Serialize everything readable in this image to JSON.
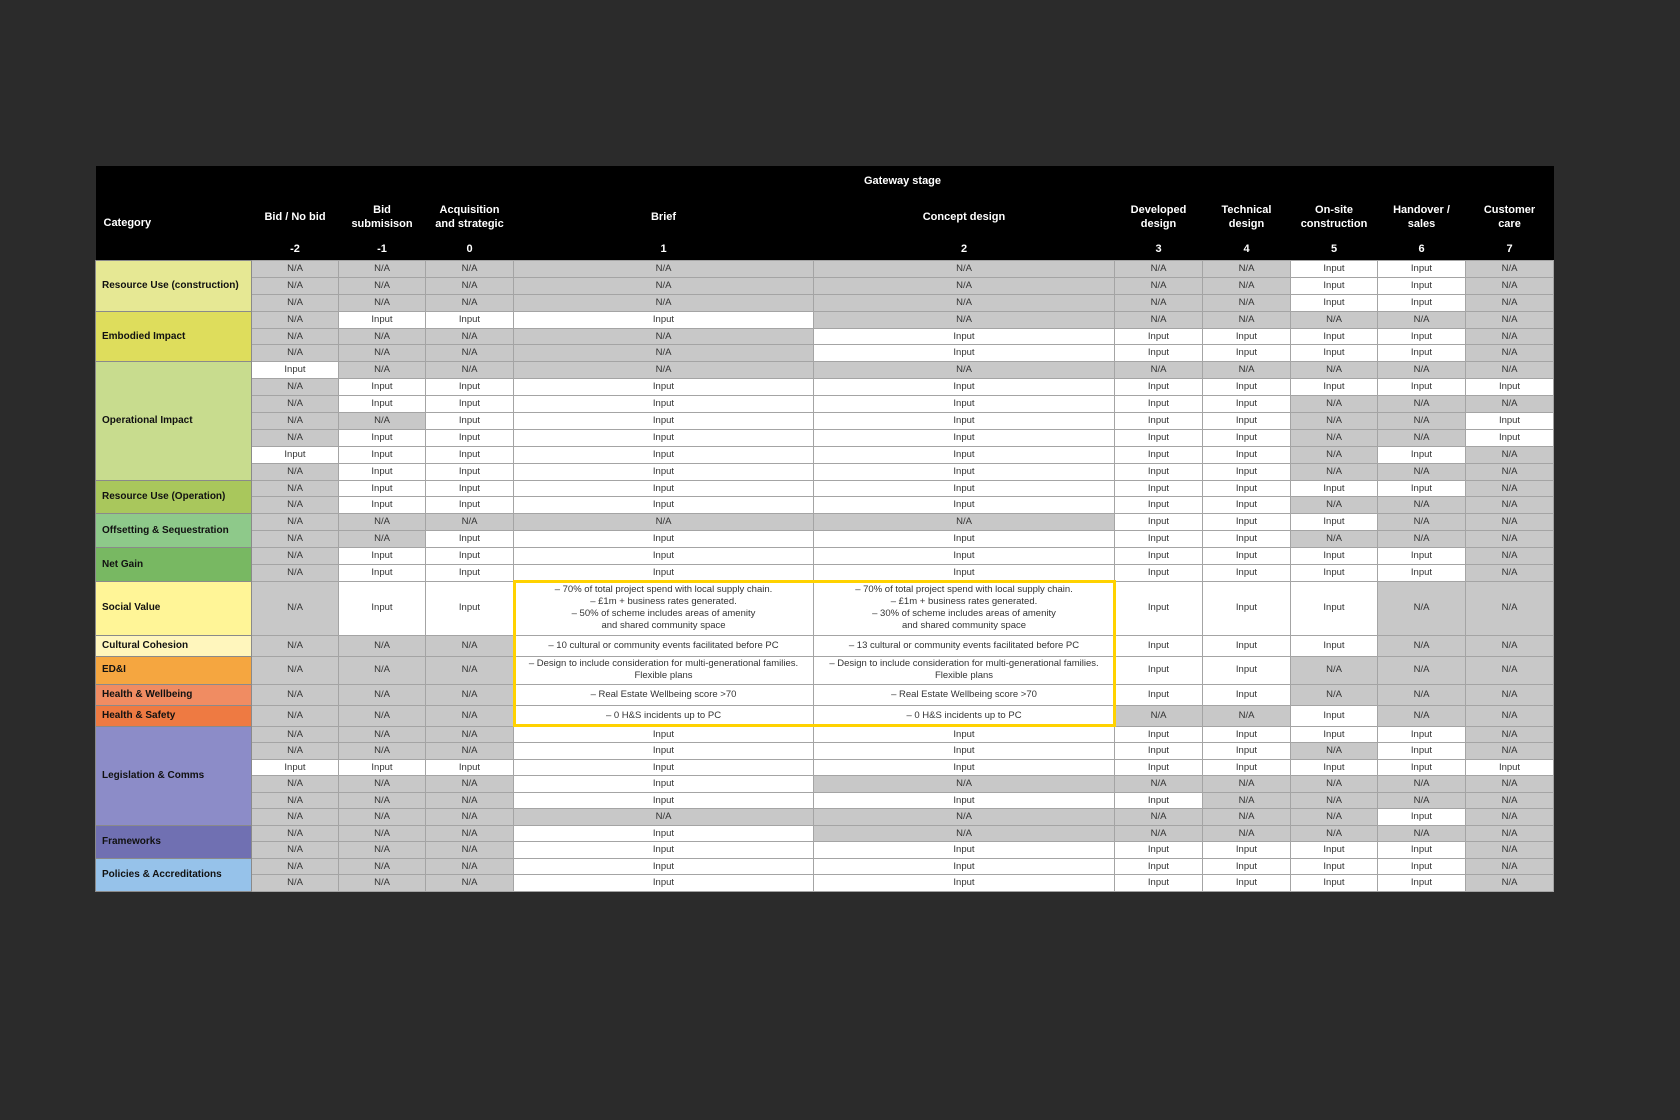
{
  "header": {
    "group_title": "Gateway stage",
    "category_label": "Category",
    "stages": [
      {
        "name": "Bid / No bid",
        "num": "-2"
      },
      {
        "name": "Bid\nsubmisison",
        "num": "-1"
      },
      {
        "name": "Acquisition\nand strategic",
        "num": "0"
      },
      {
        "name": "Brief",
        "num": "1"
      },
      {
        "name": "Concept design",
        "num": "2"
      },
      {
        "name": "Developed\ndesign",
        "num": "3"
      },
      {
        "name": "Technical\ndesign",
        "num": "4"
      },
      {
        "name": "On-site\nconstruction",
        "num": "5"
      },
      {
        "name": "Handover /\nsales",
        "num": "6"
      },
      {
        "name": "Customer\ncare",
        "num": "7"
      }
    ]
  },
  "colors": {
    "na": "#c8c8c8",
    "input": "#ffffff",
    "highlight": "#ffd200"
  },
  "categories": [
    {
      "name": "Resource Use (construction)",
      "color": "#e6e894",
      "rows": [
        [
          "N/A",
          "N/A",
          "N/A",
          "N/A",
          "N/A",
          "N/A",
          "N/A",
          "Input",
          "Input",
          "N/A"
        ],
        [
          "N/A",
          "N/A",
          "N/A",
          "N/A",
          "N/A",
          "N/A",
          "N/A",
          "Input",
          "Input",
          "N/A"
        ],
        [
          "N/A",
          "N/A",
          "N/A",
          "N/A",
          "N/A",
          "N/A",
          "N/A",
          "Input",
          "Input",
          "N/A"
        ]
      ]
    },
    {
      "name": "Embodied Impact",
      "color": "#dedd5c",
      "rows": [
        [
          "N/A",
          "Input",
          "Input",
          "Input",
          "N/A",
          "N/A",
          "N/A",
          "N/A",
          "N/A",
          "N/A"
        ],
        [
          "N/A",
          "N/A",
          "N/A",
          "N/A",
          "Input",
          "Input",
          "Input",
          "Input",
          "Input",
          "N/A"
        ],
        [
          "N/A",
          "N/A",
          "N/A",
          "N/A",
          "Input",
          "Input",
          "Input",
          "Input",
          "Input",
          "N/A"
        ]
      ]
    },
    {
      "name": "Operational Impact",
      "color": "#c8dc8e",
      "rows": [
        [
          "Input",
          "N/A",
          "N/A",
          "N/A",
          "N/A",
          "N/A",
          "N/A",
          "N/A",
          "N/A",
          "N/A"
        ],
        [
          "N/A",
          "Input",
          "Input",
          "Input",
          "Input",
          "Input",
          "Input",
          "Input",
          "Input",
          "Input"
        ],
        [
          "N/A",
          "Input",
          "Input",
          "Input",
          "Input",
          "Input",
          "Input",
          "N/A",
          "N/A",
          "N/A"
        ],
        [
          "N/A",
          "N/A",
          "Input",
          "Input",
          "Input",
          "Input",
          "Input",
          "N/A",
          "N/A",
          "Input"
        ],
        [
          "N/A",
          "Input",
          "Input",
          "Input",
          "Input",
          "Input",
          "Input",
          "N/A",
          "N/A",
          "Input"
        ],
        [
          "Input",
          "Input",
          "Input",
          "Input",
          "Input",
          "Input",
          "Input",
          "N/A",
          "Input",
          "N/A"
        ],
        [
          "N/A",
          "Input",
          "Input",
          "Input",
          "Input",
          "Input",
          "Input",
          "N/A",
          "N/A",
          "N/A"
        ]
      ]
    },
    {
      "name": "Resource Use (Operation)",
      "color": "#a9c75c",
      "rows": [
        [
          "N/A",
          "Input",
          "Input",
          "Input",
          "Input",
          "Input",
          "Input",
          "Input",
          "Input",
          "N/A"
        ],
        [
          "N/A",
          "Input",
          "Input",
          "Input",
          "Input",
          "Input",
          "Input",
          "N/A",
          "N/A",
          "N/A"
        ]
      ]
    },
    {
      "name": "Offsetting & Sequestration",
      "color": "#8ec98a",
      "rows": [
        [
          "N/A",
          "N/A",
          "N/A",
          "N/A",
          "N/A",
          "Input",
          "Input",
          "Input",
          "N/A",
          "N/A"
        ],
        [
          "N/A",
          "N/A",
          "Input",
          "Input",
          "Input",
          "Input",
          "Input",
          "N/A",
          "N/A",
          "N/A"
        ]
      ]
    },
    {
      "name": "Net Gain",
      "color": "#78b862",
      "rows": [
        [
          "N/A",
          "Input",
          "Input",
          "Input",
          "Input",
          "Input",
          "Input",
          "Input",
          "Input",
          "N/A"
        ],
        [
          "N/A",
          "Input",
          "Input",
          "Input",
          "Input",
          "Input",
          "Input",
          "Input",
          "Input",
          "N/A"
        ]
      ]
    },
    {
      "name": "Social Value",
      "color": "#fff597",
      "tall": true,
      "rows": [
        [
          "N/A",
          "Input",
          "Input",
          "– 70% of total project spend with local supply chain.\n– £1m + business rates generated.\n– 50% of scheme includes areas of amenity\nand shared community space",
          "– 70% of total project spend with local supply chain.\n– £1m + business rates generated.\n– 30% of scheme includes areas of amenity\nand shared community space",
          "Input",
          "Input",
          "Input",
          "N/A",
          "N/A"
        ]
      ]
    },
    {
      "name": "Cultural Cohesion",
      "color": "#fff6bd",
      "rows": [
        [
          "N/A",
          "N/A",
          "N/A",
          "– 10 cultural or community events facilitated before PC",
          "– 13 cultural or community events facilitated before PC",
          "Input",
          "Input",
          "Input",
          "N/A",
          "N/A"
        ]
      ]
    },
    {
      "name": "ED&I",
      "color": "#f5a640",
      "rows": [
        [
          "N/A",
          "N/A",
          "N/A",
          "– Design to include consideration for multi-generational families.\nFlexible plans",
          "– Design to include consideration for multi-generational families.\nFlexible plans",
          "Input",
          "Input",
          "N/A",
          "N/A",
          "N/A"
        ]
      ]
    },
    {
      "name": "Health & Wellbeing",
      "color": "#f08c62",
      "rows": [
        [
          "N/A",
          "N/A",
          "N/A",
          "– Real Estate Wellbeing score >70",
          "– Real Estate Wellbeing score >70",
          "Input",
          "Input",
          "N/A",
          "N/A",
          "N/A"
        ]
      ]
    },
    {
      "name": "Health & Safety",
      "color": "#ee7a42",
      "rows": [
        [
          "N/A",
          "N/A",
          "N/A",
          "– 0 H&S incidents up to PC",
          "– 0 H&S incidents up to PC",
          "N/A",
          "N/A",
          "Input",
          "N/A",
          "N/A"
        ]
      ]
    },
    {
      "name": "Legislation & Comms",
      "color": "#8c8cc8",
      "rows": [
        [
          "N/A",
          "N/A",
          "N/A",
          "Input",
          "Input",
          "Input",
          "Input",
          "Input",
          "Input",
          "N/A"
        ],
        [
          "N/A",
          "N/A",
          "N/A",
          "Input",
          "Input",
          "Input",
          "Input",
          "N/A",
          "Input",
          "N/A"
        ],
        [
          "Input",
          "Input",
          "Input",
          "Input",
          "Input",
          "Input",
          "Input",
          "Input",
          "Input",
          "Input"
        ],
        [
          "N/A",
          "N/A",
          "N/A",
          "Input",
          "N/A",
          "N/A",
          "N/A",
          "N/A",
          "N/A",
          "N/A"
        ],
        [
          "N/A",
          "N/A",
          "N/A",
          "Input",
          "Input",
          "Input",
          "N/A",
          "N/A",
          "N/A",
          "N/A"
        ],
        [
          "N/A",
          "N/A",
          "N/A",
          "N/A",
          "N/A",
          "N/A",
          "N/A",
          "N/A",
          "Input",
          "N/A"
        ]
      ]
    },
    {
      "name": "Frameworks",
      "color": "#7070b2",
      "rows": [
        [
          "N/A",
          "N/A",
          "N/A",
          "Input",
          "N/A",
          "N/A",
          "N/A",
          "N/A",
          "N/A",
          "N/A"
        ],
        [
          "N/A",
          "N/A",
          "N/A",
          "Input",
          "Input",
          "Input",
          "Input",
          "Input",
          "Input",
          "N/A"
        ]
      ]
    },
    {
      "name": "Policies & Accreditations",
      "color": "#96c2ea",
      "rows": [
        [
          "N/A",
          "N/A",
          "N/A",
          "Input",
          "Input",
          "Input",
          "Input",
          "Input",
          "Input",
          "N/A"
        ],
        [
          "N/A",
          "N/A",
          "N/A",
          "Input",
          "Input",
          "Input",
          "Input",
          "Input",
          "Input",
          "N/A"
        ]
      ]
    }
  ]
}
